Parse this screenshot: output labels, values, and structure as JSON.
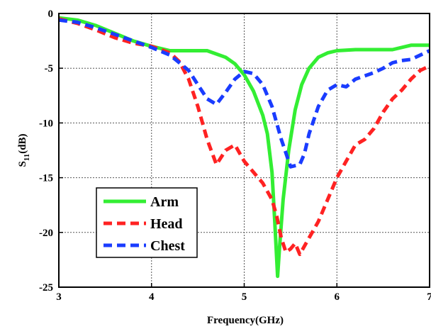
{
  "chart_data": {
    "type": "line",
    "xlabel": "Frequency(GHz)",
    "ylabel_main": "S",
    "ylabel_sub": "11",
    "ylabel_unit": "(dB)",
    "xlim": [
      3,
      7
    ],
    "ylim": [
      -25,
      0
    ],
    "xticks": [
      "3",
      "4",
      "5",
      "6",
      "7"
    ],
    "yticks": [
      "0",
      "-5",
      "-10",
      "-15",
      "-20",
      "-25"
    ],
    "grid": true,
    "legend_position": "bottom-left",
    "series": [
      {
        "name": "Arm",
        "color": "#33ee33",
        "style": "solid",
        "x": [
          3.0,
          3.2,
          3.4,
          3.6,
          3.8,
          4.0,
          4.2,
          4.4,
          4.6,
          4.8,
          4.9,
          5.0,
          5.1,
          5.2,
          5.25,
          5.3,
          5.33,
          5.36,
          5.38,
          5.42,
          5.48,
          5.55,
          5.62,
          5.7,
          5.8,
          5.9,
          6.0,
          6.2,
          6.4,
          6.6,
          6.8,
          7.0
        ],
        "y": [
          -0.4,
          -0.6,
          -1.1,
          -1.8,
          -2.5,
          -3.0,
          -3.4,
          -3.4,
          -3.4,
          -4.0,
          -4.6,
          -5.6,
          -7.1,
          -9.3,
          -11.0,
          -14.5,
          -19.0,
          -24.0,
          -21.5,
          -17.0,
          -12.5,
          -8.8,
          -6.5,
          -5.0,
          -4.0,
          -3.6,
          -3.4,
          -3.3,
          -3.3,
          -3.3,
          -2.9,
          -2.9
        ]
      },
      {
        "name": "Head",
        "color": "#ff2222",
        "style": "dashed",
        "x": [
          3.0,
          3.2,
          3.4,
          3.6,
          3.8,
          4.0,
          4.2,
          4.3,
          4.4,
          4.5,
          4.6,
          4.7,
          4.8,
          4.9,
          5.0,
          5.1,
          5.2,
          5.3,
          5.35,
          5.4,
          5.45,
          5.5,
          5.55,
          5.6,
          5.7,
          5.8,
          5.9,
          6.0,
          6.1,
          6.2,
          6.3,
          6.4,
          6.5,
          6.6,
          6.7,
          6.8,
          6.9,
          7.0
        ],
        "y": [
          -0.5,
          -0.9,
          -1.5,
          -2.2,
          -2.7,
          -3.0,
          -3.6,
          -4.4,
          -6.0,
          -8.5,
          -11.5,
          -13.8,
          -12.5,
          -12.0,
          -13.5,
          -14.5,
          -15.5,
          -17.0,
          -18.5,
          -20.5,
          -21.8,
          -21.5,
          -21.0,
          -22.0,
          -20.5,
          -19.0,
          -17.0,
          -15.0,
          -13.5,
          -12.0,
          -11.5,
          -10.5,
          -9.0,
          -7.8,
          -7.0,
          -6.0,
          -5.2,
          -4.8
        ]
      },
      {
        "name": "Chest",
        "color": "#1a3cff",
        "style": "dashed",
        "x": [
          3.0,
          3.2,
          3.4,
          3.6,
          3.8,
          4.0,
          4.2,
          4.4,
          4.5,
          4.6,
          4.7,
          4.8,
          4.9,
          5.0,
          5.1,
          5.2,
          5.3,
          5.4,
          5.5,
          5.6,
          5.65,
          5.7,
          5.8,
          5.9,
          6.0,
          6.1,
          6.2,
          6.3,
          6.4,
          6.5,
          6.6,
          6.7,
          6.8,
          6.9,
          7.0
        ],
        "y": [
          -0.6,
          -0.8,
          -1.3,
          -1.9,
          -2.5,
          -3.1,
          -3.8,
          -5.2,
          -6.5,
          -7.8,
          -8.3,
          -7.2,
          -6.0,
          -5.3,
          -5.5,
          -6.5,
          -8.5,
          -11.5,
          -14.0,
          -13.8,
          -12.8,
          -11.0,
          -8.5,
          -7.0,
          -6.5,
          -6.7,
          -6.0,
          -5.7,
          -5.4,
          -5.0,
          -4.5,
          -4.3,
          -4.2,
          -3.8,
          -3.4
        ]
      }
    ]
  }
}
